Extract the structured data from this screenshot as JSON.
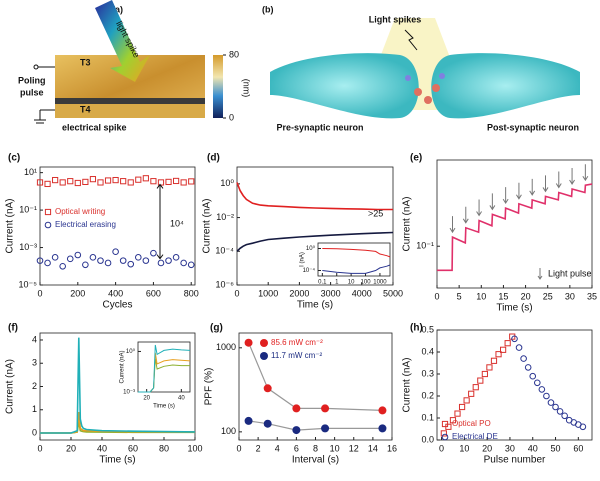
{
  "panel_a": {
    "label": "(a)",
    "light": "light spike",
    "t3": "T3",
    "t4": "T4",
    "poling": [
      "Poling",
      "pulse"
    ],
    "electrical": "electrical spike",
    "colorbar": {
      "lim": [
        0,
        80
      ],
      "ticks": [
        80,
        0
      ],
      "unit": "(nm)"
    }
  },
  "panel_b": {
    "label": "(b)",
    "light": "Light spikes",
    "pre": "Pre-synaptic neuron",
    "post": "Post-synaptic neuron"
  },
  "chart_data": [
    {
      "type": "scatter",
      "panel": "(c)",
      "xlabel": "Cycles",
      "ylabel": "Current (nA)",
      "annotation": "10⁴",
      "xlim": [
        0,
        820
      ],
      "xticks": [
        0,
        200,
        400,
        600,
        800
      ],
      "ylog": true,
      "ylim": [
        1e-05,
        20
      ],
      "yticks": [
        {
          "value": 1e-05,
          "label": "10⁻⁵"
        },
        {
          "value": 0.001,
          "label": "10⁻³"
        },
        {
          "value": 0.1,
          "label": "10⁻¹"
        },
        {
          "value": 10,
          "label": "10¹"
        }
      ],
      "x": [
        0,
        40,
        80,
        120,
        160,
        200,
        240,
        280,
        320,
        360,
        400,
        440,
        480,
        520,
        560,
        600,
        640,
        680,
        720,
        760,
        800
      ],
      "series": [
        {
          "name": "Optical writing",
          "color": "#d9302c",
          "marker": "square",
          "values": [
            3,
            2.5,
            4,
            3,
            3.5,
            2.8,
            3.2,
            4.5,
            3,
            3.8,
            4,
            3.5,
            3,
            4.2,
            5,
            3.5,
            3,
            3.2,
            3.6,
            3,
            3.4
          ]
        },
        {
          "name": "Electrical erasing",
          "color": "#2a3590",
          "marker": "circle",
          "values": [
            0.0002,
            0.00015,
            0.0003,
            0.0001,
            0.00025,
            0.0004,
            0.00012,
            0.0003,
            0.0002,
            0.00015,
            0.0006,
            0.0002,
            0.00013,
            0.0003,
            0.0002,
            0.0005,
            0.00015,
            0.0002,
            0.0003,
            0.00015,
            0.00012
          ]
        }
      ]
    },
    {
      "type": "line",
      "panel": "(d)",
      "xlabel": "Time (s)",
      "ylabel": "Current (nA)",
      "annotation": ">25",
      "xlim": [
        0,
        5000
      ],
      "xticks": [
        0,
        1000,
        2000,
        3000,
        4000,
        5000
      ],
      "ylog": true,
      "ylim": [
        1e-06,
        10
      ],
      "yticks": [
        {
          "value": 1,
          "label": "10⁰"
        },
        {
          "value": 0.01,
          "label": "10⁻²"
        },
        {
          "value": 0.0001,
          "label": "10⁻⁴"
        },
        {
          "value": 1e-06,
          "label": "10⁻⁶"
        }
      ],
      "x": [
        0,
        100,
        200,
        300,
        500,
        750,
        1000,
        1500,
        2000,
        2500,
        3000,
        3500,
        4000,
        4500,
        5000
      ],
      "series": [
        {
          "color": "#e02020",
          "values": [
            1.2,
            0.4,
            0.2,
            0.12,
            0.07,
            0.055,
            0.05,
            0.045,
            0.04,
            0.037,
            0.035,
            0.033,
            0.032,
            0.03,
            0.03
          ]
        },
        {
          "color": "#151a40",
          "values": [
            0.0001,
            0.00015,
            0.0002,
            0.00025,
            0.0003,
            0.0004,
            0.0005,
            0.0006,
            0.0007,
            0.0008,
            0.0009,
            0.001,
            0.0011,
            0.0012,
            0.0013
          ]
        }
      ],
      "inset": {
        "type": "line",
        "ylabel": "I (nA)",
        "xlog": true,
        "xlim": [
          0.05,
          5000
        ],
        "xticks": [
          0.1,
          1,
          10,
          100,
          1000
        ],
        "ylog": true,
        "ylim": [
          1e-05,
          10
        ],
        "yticks": [
          {
            "value": 1,
            "label": "10⁰"
          },
          {
            "value": 0.0001,
            "label": "10⁻⁴"
          }
        ],
        "x": [
          0.1,
          1,
          10,
          100,
          500,
          1000,
          3000,
          5000
        ],
        "series": [
          {
            "color": "#e02020",
            "values": [
              1,
              0.9,
              0.7,
              0.5,
              0.3,
              0.1,
              0.05,
              0.03
            ]
          },
          {
            "color": "#2a3590",
            "values": [
              0.0001,
              5e-05,
              3e-05,
              3e-05,
              0.0001,
              0.0003,
              0.0006,
              0.001
            ]
          }
        ]
      }
    },
    {
      "type": "line",
      "panel": "(e)",
      "xlabel": "Time (s)",
      "ylabel": "Current (nA)",
      "annotation": "Light pulse",
      "xlim": [
        0,
        35
      ],
      "xticks": [
        0,
        5,
        10,
        15,
        20,
        25,
        30,
        35
      ],
      "ylog": true,
      "ylim": [
        0.03,
        1.2
      ],
      "yticks": [
        {
          "value": 0.1,
          "label": "10⁻¹"
        }
      ],
      "pulse_times": [
        3.5,
        6.5,
        9.5,
        12.5,
        15.5,
        18.5,
        21.5,
        24.5,
        27.5,
        30.5,
        33.5
      ],
      "x": [
        0,
        3.4,
        3.5,
        6.4,
        6.5,
        9.4,
        9.5,
        12.4,
        12.5,
        15.4,
        15.5,
        18.4,
        18.5,
        21.4,
        21.5,
        24.4,
        24.5,
        27.4,
        27.5,
        30.4,
        30.5,
        33.4,
        33.5,
        35
      ],
      "series": [
        {
          "color": "#e0306a",
          "values": [
            0.05,
            0.05,
            0.13,
            0.11,
            0.17,
            0.15,
            0.21,
            0.18,
            0.25,
            0.22,
            0.3,
            0.26,
            0.34,
            0.3,
            0.38,
            0.34,
            0.42,
            0.38,
            0.47,
            0.42,
            0.52,
            0.47,
            0.58,
            0.6
          ]
        }
      ]
    },
    {
      "type": "line",
      "panel": "(f)",
      "xlabel": "Time (s)",
      "ylabel": "Current (nA)",
      "xlim": [
        0,
        100
      ],
      "xticks": [
        0,
        20,
        40,
        60,
        80,
        100
      ],
      "ylim": [
        -0.3,
        4.3
      ],
      "yticks": [
        0,
        1,
        2,
        3,
        4
      ],
      "x": [
        0,
        10,
        20,
        22,
        24,
        25,
        26,
        27,
        28,
        30,
        40,
        60,
        80,
        100
      ],
      "series": [
        {
          "color": "#8db030",
          "values": [
            0,
            0,
            0,
            0.02,
            0.04,
            0.5,
            0.1,
            0.08,
            0.06,
            0.05,
            0.04,
            0.03,
            0.03,
            0.03
          ]
        },
        {
          "color": "#e8a020",
          "values": [
            0,
            0,
            0,
            0.02,
            0.05,
            0.9,
            0.2,
            0.15,
            0.1,
            0.1,
            0.08,
            0.06,
            0.05,
            0.05
          ]
        },
        {
          "color": "#20b0b8",
          "values": [
            0,
            0,
            0,
            0.05,
            0.1,
            4.1,
            0.6,
            0.3,
            0.2,
            0.15,
            0.1,
            0.08,
            0.06,
            0.05
          ]
        }
      ],
      "inset": {
        "type": "line",
        "xlabel": "Time (s)",
        "ylabel": "Current (nA)",
        "xlim": [
          15,
          45
        ],
        "xticks": [
          20,
          40
        ],
        "ylog": true,
        "ylim": [
          0.001,
          5
        ],
        "yticks": [
          {
            "value": 1,
            "label": "10⁰"
          },
          {
            "value": 0.001,
            "label": "10⁻³"
          }
        ],
        "x": [
          15,
          22,
          24,
          25,
          26,
          30,
          35,
          40,
          45
        ],
        "series": [
          {
            "color": "#8db030",
            "values": [
              0.001,
              0.001,
              0.002,
              0.3,
              0.05,
              0.08,
              0.1,
              0.09,
              0.09
            ]
          },
          {
            "color": "#e8a020",
            "values": [
              0.001,
              0.001,
              0.002,
              0.8,
              0.12,
              0.2,
              0.25,
              0.22,
              0.2
            ]
          },
          {
            "color": "#20b0b8",
            "values": [
              0.001,
              0.001,
              0.002,
              3,
              0.6,
              1.2,
              1.5,
              1.3,
              1.2
            ]
          }
        ]
      }
    },
    {
      "type": "scatter",
      "panel": "(g)",
      "xlabel": "Interval (s)",
      "ylabel": "PPF (%)",
      "connect": true,
      "xlim": [
        0,
        16
      ],
      "xticks": [
        0,
        2,
        4,
        6,
        8,
        10,
        12,
        14,
        16
      ],
      "ylog": true,
      "ylim": [
        80,
        1500
      ],
      "yticks": [
        100,
        1000
      ],
      "x": [
        1,
        3,
        6,
        9,
        15
      ],
      "series": [
        {
          "name": "85.6 mW cm⁻²",
          "color": "#e02020",
          "marker": "dot",
          "values": [
            1150,
            330,
            190,
            190,
            180
          ]
        },
        {
          "name": "11.7 mW cm⁻²",
          "color": "#1a2a80",
          "marker": "dot",
          "values": [
            135,
            125,
            105,
            110,
            110
          ]
        }
      ]
    },
    {
      "type": "scatter",
      "panel": "(h)",
      "xlabel": "Pulse number",
      "ylabel": "Current (nA)",
      "xlim": [
        -2,
        66
      ],
      "xticks": [
        0,
        10,
        20,
        30,
        40,
        50,
        60
      ],
      "ylim": [
        0,
        0.5
      ],
      "yticks": [
        {
          "value": 0,
          "label": "0.0"
        },
        0.1,
        0.2,
        0.3,
        0.4,
        0.5
      ],
      "series": [
        {
          "name": "Optical PO",
          "color": "#d9302c",
          "marker": "square",
          "x": [
            1,
            3,
            5,
            7,
            9,
            11,
            13,
            15,
            17,
            19,
            21,
            23,
            25,
            27,
            29,
            31
          ],
          "values": [
            0.03,
            0.06,
            0.09,
            0.12,
            0.15,
            0.18,
            0.21,
            0.24,
            0.27,
            0.3,
            0.33,
            0.36,
            0.39,
            0.41,
            0.44,
            0.47
          ]
        },
        {
          "name": "Electrical DE",
          "color": "#2a3590",
          "marker": "circle",
          "x": [
            32,
            34,
            36,
            38,
            40,
            42,
            44,
            46,
            48,
            50,
            52,
            54,
            56,
            58,
            60,
            62
          ],
          "values": [
            0.46,
            0.42,
            0.37,
            0.33,
            0.29,
            0.26,
            0.23,
            0.2,
            0.17,
            0.15,
            0.13,
            0.11,
            0.09,
            0.08,
            0.07,
            0.06
          ]
        }
      ]
    }
  ]
}
